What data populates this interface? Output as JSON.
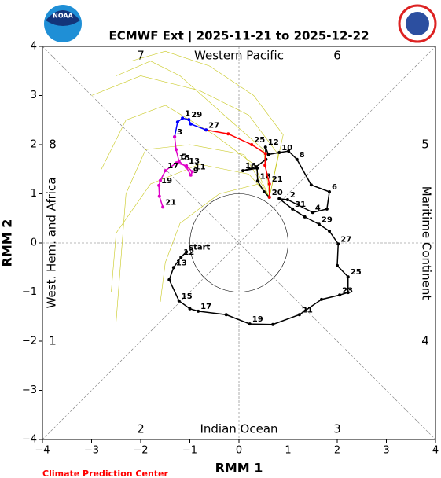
{
  "chart_data": {
    "type": "line",
    "title": "ECMWF Ext | 2025-11-21 to 2025-12-22",
    "xlabel": "RMM 1",
    "ylabel": "RMM 2",
    "footer": "Climate Prediction Center",
    "logo_left": "NOAA",
    "phase_labels": [
      "1",
      "2",
      "3",
      "4",
      "5",
      "6",
      "7",
      "8"
    ],
    "region_labels": [
      "Western Pacific",
      "Indian Ocean",
      "West. Hem. and Africa",
      "Maritime Continent"
    ],
    "xlim": [
      -4,
      4
    ],
    "ylim": [
      -4,
      4
    ],
    "xticks": [
      {
        "value": -4,
        "label": "−4"
      },
      {
        "value": -3,
        "label": "−3"
      },
      {
        "value": -2,
        "label": "−2"
      },
      {
        "value": -1,
        "label": "−1"
      },
      0,
      1,
      2,
      3,
      4
    ],
    "yticks": [
      {
        "value": -4,
        "label": "−4"
      },
      {
        "value": -3,
        "label": "−3"
      },
      {
        "value": -2,
        "label": "−2"
      },
      {
        "value": -1,
        "label": "−1"
      },
      0,
      1,
      2,
      3,
      4
    ],
    "circle_radius": 1,
    "ensemble_color": "#c8c81e",
    "ensemble": [
      {
        "x": [
          0.62,
          0.3,
          -0.5,
          -1.5,
          -2.3,
          -2.8
        ],
        "y": [
          0.93,
          1.6,
          2.2,
          2.8,
          2.5,
          1.5
        ]
      },
      {
        "x": [
          0.62,
          0.8,
          0.2,
          -0.8,
          -2.0,
          -3.0
        ],
        "y": [
          0.93,
          1.8,
          2.6,
          3.1,
          3.4,
          3.0
        ]
      },
      {
        "x": [
          0.62,
          0.2,
          -0.8,
          -1.8,
          -2.5,
          -2.6
        ],
        "y": [
          0.93,
          1.4,
          1.6,
          1.2,
          0.2,
          -1.0
        ]
      },
      {
        "x": [
          0.62,
          0.5,
          -0.3,
          -1.2,
          -1.8,
          -2.5
        ],
        "y": [
          0.93,
          1.9,
          2.6,
          3.4,
          3.7,
          3.4
        ]
      },
      {
        "x": [
          0.62,
          0.1,
          -1.0,
          -1.9,
          -2.3,
          -2.5
        ],
        "y": [
          0.93,
          1.8,
          2.0,
          1.9,
          1.0,
          -1.6
        ]
      },
      {
        "x": [
          0.62,
          0.4,
          -0.4,
          -1.2,
          -1.5,
          -1.6
        ],
        "y": [
          0.93,
          1.2,
          1.0,
          0.4,
          -0.4,
          -1.2
        ]
      },
      {
        "x": [
          0.62,
          0.9,
          0.3,
          -0.6,
          -1.5,
          -2.2
        ],
        "y": [
          0.93,
          2.2,
          3.0,
          3.6,
          3.9,
          3.7
        ]
      }
    ],
    "series": [
      {
        "color": "#000000",
        "x": [
          -1.07,
          -1.18,
          -1.33,
          -1.42,
          -1.22,
          -1.0,
          -0.83,
          -0.26,
          0.22,
          0.69,
          1.23,
          1.68,
          2.05,
          2.22,
          2.22,
          2.0,
          2.02,
          1.84,
          1.63,
          1.34,
          1.09,
          0.82,
          0.99,
          1.5,
          1.79,
          1.84,
          1.47,
          1.18,
          1.01,
          0.82,
          0.6,
          0.54,
          0.55,
          0.35,
          0.08,
          0.37,
          0.38,
          0.51,
          0.62
        ],
        "y": [
          -0.18,
          -0.29,
          -0.5,
          -0.75,
          -1.18,
          -1.34,
          -1.39,
          -1.46,
          -1.65,
          -1.66,
          -1.46,
          -1.15,
          -1.06,
          -1.01,
          -0.69,
          -0.46,
          -0.02,
          0.24,
          0.38,
          0.53,
          0.69,
          0.9,
          0.88,
          0.62,
          0.69,
          1.04,
          1.18,
          1.7,
          1.87,
          1.84,
          1.8,
          1.95,
          1.7,
          1.55,
          1.47,
          1.52,
          1.26,
          1.04,
          0.93
        ],
        "point_labels": [
          "start",
          "12",
          "13",
          null,
          "15",
          null,
          "17",
          null,
          "19",
          null,
          "21",
          null,
          "23",
          null,
          "25",
          null,
          "27",
          null,
          "29",
          null,
          "31",
          null,
          "2",
          "4",
          null,
          "6",
          null,
          "8",
          null,
          "10",
          null,
          "12",
          null,
          null,
          "16",
          null,
          "18",
          null,
          "20"
        ]
      },
      {
        "color": "#ff0000",
        "x": [
          0.62,
          0.62,
          0.53,
          0.54,
          0.26,
          -0.22,
          -0.67
        ],
        "y": [
          0.93,
          1.2,
          1.58,
          1.82,
          2.0,
          2.22,
          2.3
        ],
        "point_labels": [
          null,
          "21",
          null,
          null,
          "25",
          null,
          "27"
        ]
      },
      {
        "color": "#0000ff",
        "x": [
          -0.67,
          -0.98,
          -1.02,
          -1.15,
          -1.25,
          -1.31
        ],
        "y": [
          2.3,
          2.42,
          2.51,
          2.54,
          2.46,
          2.16
        ],
        "point_labels": [
          null,
          null,
          "29",
          "1",
          null,
          "3"
        ]
      },
      {
        "color": "#e000c8",
        "x": [
          -1.31,
          -1.28,
          -1.22,
          -1.07,
          -0.98,
          -0.95,
          -1.07,
          -1.27,
          -1.5,
          -1.6,
          -1.63,
          -1.62,
          -1.55
        ],
        "y": [
          2.16,
          1.9,
          1.66,
          1.54,
          1.38,
          1.45,
          1.57,
          1.63,
          1.47,
          1.27,
          1.17,
          0.95,
          0.73
        ],
        "point_labels": [
          null,
          null,
          "5",
          null,
          "9",
          "11",
          "13",
          "15",
          "17",
          null,
          "19",
          null,
          "21"
        ]
      }
    ]
  }
}
